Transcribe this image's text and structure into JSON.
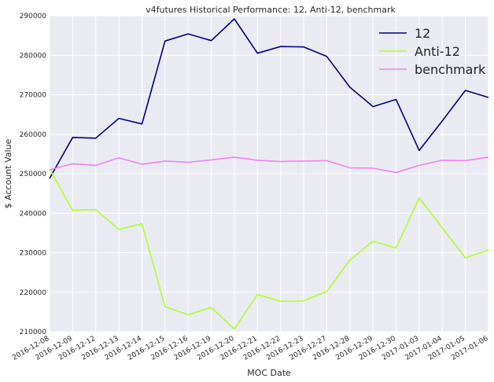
{
  "chart_data": {
    "type": "line",
    "title": "v4futures Historical Performance: 12, Anti-12, benchmark",
    "xlabel": "MOC Date",
    "ylabel": "$ Account Value",
    "ylim": [
      210000,
      290000
    ],
    "yticks": [
      210000,
      220000,
      230000,
      240000,
      250000,
      260000,
      270000,
      280000,
      290000
    ],
    "categories": [
      "2016-12-08",
      "2016-12-09",
      "2016-12-12",
      "2016-12-13",
      "2016-12-14",
      "2016-12-15",
      "2016-12-16",
      "2016-12-19",
      "2016-12-20",
      "2016-12-21",
      "2016-12-22",
      "2016-12-23",
      "2016-12-27",
      "2016-12-28",
      "2016-12-29",
      "2016-12-30",
      "2017-01-03",
      "2017-01-04",
      "2017-01-05",
      "2017-01-06"
    ],
    "grid": true,
    "legend_position": "top-right",
    "series": [
      {
        "name": "12",
        "color": "#000080",
        "values": [
          248800,
          259200,
          259000,
          264000,
          262600,
          283600,
          285400,
          283700,
          289200,
          280500,
          282200,
          282100,
          279700,
          271900,
          267000,
          268800,
          255900,
          263400,
          271100,
          269300
        ]
      },
      {
        "name": "Anti-12",
        "color": "#adff2f",
        "values": [
          251200,
          240700,
          240900,
          235900,
          237300,
          216300,
          214300,
          216100,
          210700,
          219400,
          217700,
          217800,
          220200,
          228100,
          232900,
          231200,
          243900,
          236300,
          228700,
          230700
        ]
      },
      {
        "name": "benchmark",
        "color": "#ee82ee",
        "values": [
          251000,
          252500,
          252100,
          254000,
          252400,
          253200,
          252900,
          253500,
          254200,
          253400,
          253100,
          253200,
          253300,
          251500,
          251400,
          250300,
          252100,
          253400,
          253300,
          254200
        ]
      }
    ]
  }
}
